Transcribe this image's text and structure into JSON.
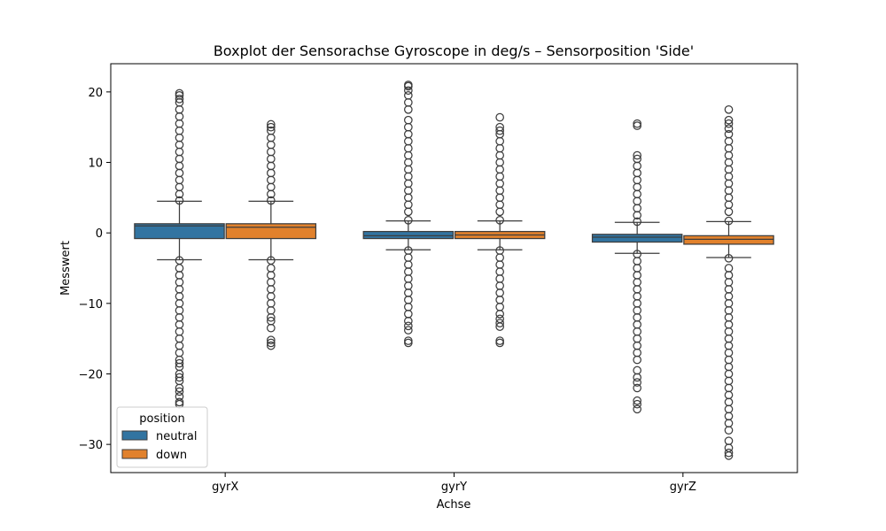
{
  "chart_data": {
    "type": "boxplot",
    "title": "Boxplot der Sensorachse Gyroscope in deg/s – Sensorposition 'Side'",
    "xlabel": "Achse",
    "ylabel": "Messwert",
    "ylim": [
      -34,
      24
    ],
    "y_ticks": [
      20,
      10,
      0,
      -10,
      -20,
      -30
    ],
    "y_tick_labels": [
      "20",
      "10",
      "0",
      "−10",
      "−20",
      "−30"
    ],
    "categories": [
      "gyrX",
      "gyrY",
      "gyrZ"
    ],
    "grid": false,
    "legend": {
      "title": "position",
      "placement": "lower-left"
    },
    "series": [
      {
        "name": "neutral",
        "color": "#3274a1",
        "boxes": [
          {
            "category": "gyrX",
            "whisker_low": -3.8,
            "q1": -0.8,
            "median": 1.0,
            "q3": 1.3,
            "whisker_high": 4.5,
            "outliers_low": [
              -3.9,
              -5,
              -6,
              -7,
              -8,
              -9,
              -10,
              -11,
              -12,
              -13,
              -14,
              -15,
              -16,
              -17,
              -18,
              -18.5,
              -19,
              -20,
              -20.5,
              -21,
              -22,
              -22.5,
              -23.2,
              -24,
              -24.3
            ],
            "outliers_high": [
              4.6,
              5.5,
              6.5,
              7.5,
              8.5,
              9.5,
              10.5,
              11.5,
              12.5,
              13.5,
              14.5,
              15.5,
              16.5,
              17.5,
              18.5,
              19.0,
              19.5,
              19.8
            ]
          },
          {
            "category": "gyrY",
            "whisker_low": -2.4,
            "q1": -0.8,
            "median": -0.4,
            "q3": 0.2,
            "whisker_high": 1.7,
            "outliers_low": [
              -2.5,
              -3.5,
              -4.5,
              -5.5,
              -6.5,
              -7.5,
              -8.5,
              -9.5,
              -10.5,
              -11.5,
              -12.5,
              -13.2,
              -13.8,
              -15.3,
              -15.6
            ],
            "outliers_high": [
              1.8,
              3,
              4,
              5,
              6,
              7,
              8,
              9,
              10,
              11,
              12,
              13,
              14,
              15,
              16,
              17.5,
              18.5,
              19.5,
              20.2,
              20.8,
              21.0
            ]
          },
          {
            "category": "gyrZ",
            "whisker_low": -2.9,
            "q1": -1.3,
            "median": -0.6,
            "q3": -0.2,
            "whisker_high": 1.5,
            "outliers_low": [
              -3.0,
              -4,
              -5,
              -6,
              -7,
              -8,
              -9,
              -10,
              -11,
              -12,
              -13,
              -14,
              -15,
              -16,
              -17,
              -18,
              -19.5,
              -20.5,
              -21.2,
              -22,
              -23.8,
              -24.3,
              -25.0
            ],
            "outliers_high": [
              1.6,
              2.5,
              3.5,
              4.5,
              5.5,
              6.5,
              7.5,
              8.5,
              9.5,
              10.5,
              11.0,
              15.2,
              15.5
            ]
          }
        ]
      },
      {
        "name": "down",
        "color": "#e1812c",
        "boxes": [
          {
            "category": "gyrX",
            "whisker_low": -3.8,
            "q1": -0.8,
            "median": 0.8,
            "q3": 1.3,
            "whisker_high": 4.5,
            "outliers_low": [
              -3.9,
              -5,
              -6,
              -7,
              -8,
              -9,
              -10,
              -11,
              -12,
              -12.5,
              -13.5,
              -15.2,
              -15.6,
              -16.0
            ],
            "outliers_high": [
              4.6,
              5.5,
              6.5,
              7.5,
              8.5,
              9.5,
              10.5,
              11.5,
              12.5,
              13.5,
              14.5,
              15.0,
              15.4
            ]
          },
          {
            "category": "gyrY",
            "whisker_low": -2.4,
            "q1": -0.8,
            "median": -0.3,
            "q3": 0.2,
            "whisker_high": 1.7,
            "outliers_low": [
              -2.5,
              -3.5,
              -4.5,
              -5.5,
              -6.5,
              -7.5,
              -8.5,
              -9.5,
              -10.5,
              -11.5,
              -12.2,
              -12.8,
              -13.3,
              -15.3,
              -15.6
            ],
            "outliers_high": [
              1.8,
              3,
              4,
              5,
              6,
              7,
              8,
              9,
              10,
              11,
              12,
              13,
              14,
              14.5,
              15.0,
              16.4
            ]
          },
          {
            "category": "gyrZ",
            "whisker_low": -3.5,
            "q1": -1.6,
            "median": -0.9,
            "q3": -0.4,
            "whisker_high": 1.6,
            "outliers_low": [
              -3.6,
              -5,
              -6,
              -7,
              -8,
              -9,
              -10,
              -11,
              -12,
              -13,
              -14,
              -15,
              -16,
              -17,
              -18,
              -19,
              -20,
              -21,
              -22,
              -23,
              -24,
              -25,
              -26,
              -27,
              -28,
              -29.5,
              -30.5,
              -31.2,
              -31.6
            ],
            "outliers_high": [
              1.7,
              3,
              4,
              5,
              6,
              7,
              8,
              9,
              10,
              11,
              12,
              13,
              14,
              14.8,
              15.5,
              16.0,
              17.5
            ]
          }
        ]
      }
    ]
  }
}
